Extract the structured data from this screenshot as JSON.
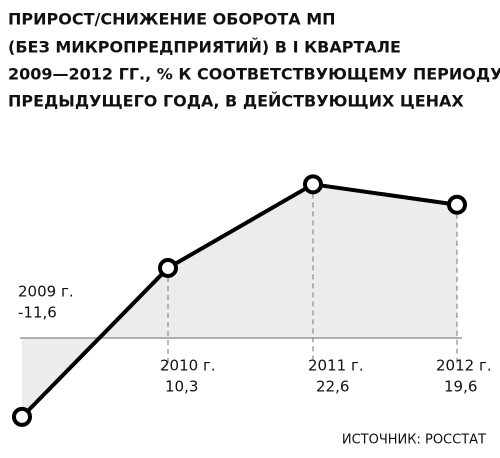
{
  "chart_data": {
    "type": "line",
    "title": [
      "Прирост/снижение оборота МП",
      "(без микропредприятий) в I квартале",
      "2009—2012 гг., % к соответствующему периоду",
      "предыдущего года, в действующих ценах"
    ],
    "categories": [
      "2009 г.",
      "2010 г.",
      "2011 г.",
      "2012 г."
    ],
    "values": [
      -11.6,
      10.3,
      22.6,
      19.6
    ],
    "value_labels": [
      "-11,6",
      "10,3",
      "22,6",
      "19,6"
    ],
    "color": "#000000",
    "source": "ИСТОЧНИК: РОССТАТ"
  }
}
